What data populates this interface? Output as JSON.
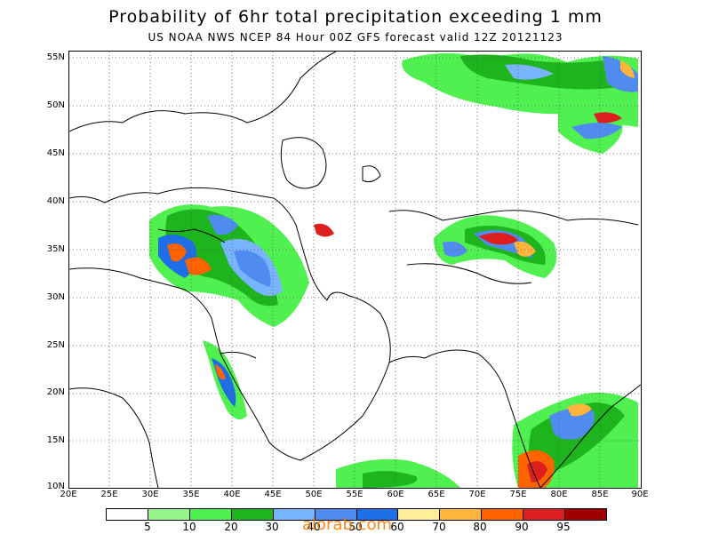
{
  "title": "Probability of 6hr total precipitation exceeding 1 mm",
  "subtitle": "US NOAA NWS NCEP 84 Hour 00Z GFS forecast valid 12Z 20121123",
  "lat_labels": [
    "55N",
    "50N",
    "45N",
    "40N",
    "35N",
    "30N",
    "25N",
    "20N",
    "15N",
    "10N"
  ],
  "lon_labels": [
    "20E",
    "25E",
    "30E",
    "35E",
    "40E",
    "45E",
    "50E",
    "55E",
    "60E",
    "65E",
    "70E",
    "75E",
    "80E",
    "85E",
    "90E"
  ],
  "legend": {
    "colors": [
      "#ffffff",
      "#96f58c",
      "#50f050",
      "#1eb41e",
      "#78b4ff",
      "#508cf0",
      "#1e6ee6",
      "#ffee9a",
      "#ffb43c",
      "#ff6400",
      "#dc1e1e",
      "#a00000"
    ],
    "labels": [
      "5",
      "10",
      "20",
      "30",
      "40",
      "50",
      "60",
      "70",
      "80",
      "90",
      "95"
    ]
  },
  "watermark": "alorab.com"
}
